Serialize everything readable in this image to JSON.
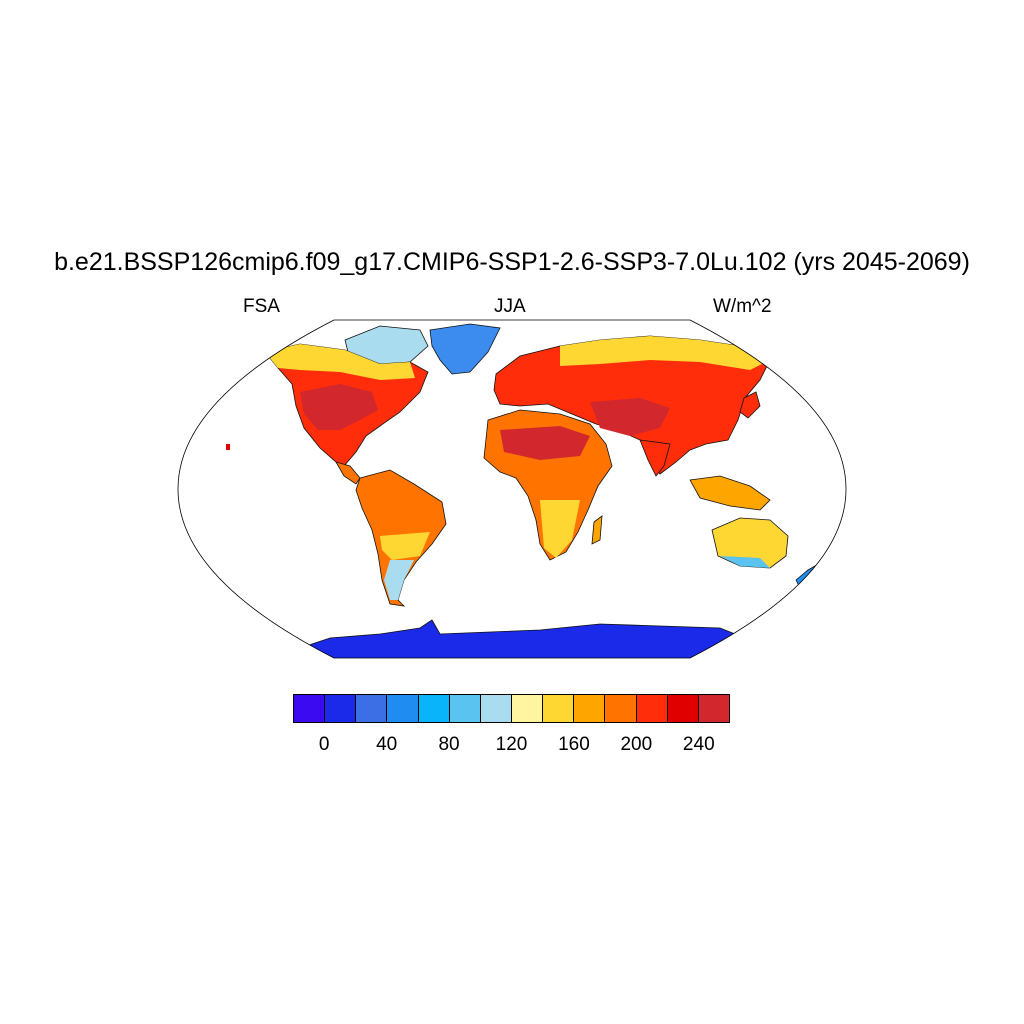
{
  "header": {
    "title": "b.e21.BSSP126cmip6.f09_g17.CMIP6-SSP1-2.6-SSP3-7.0Lu.102 (yrs 2045-2069)",
    "left": "FSA",
    "center": "JJA",
    "right": "W/m^2"
  },
  "colorbar": {
    "colors": [
      "#3c0af0",
      "#1a2ae8",
      "#3c6ee6",
      "#1e8cf0",
      "#0ab4fa",
      "#5ac3f0",
      "#aadcf0",
      "#fff5a0",
      "#ffd732",
      "#ffa500",
      "#ff7300",
      "#ff2d0a",
      "#e10000",
      "#d2282d"
    ],
    "tick_labels": [
      "0",
      "40",
      "80",
      "120",
      "160",
      "200",
      "240"
    ]
  },
  "legend_semantics": {
    "low_color": "#1a2ae8",
    "high_color": "#d2282d"
  }
}
